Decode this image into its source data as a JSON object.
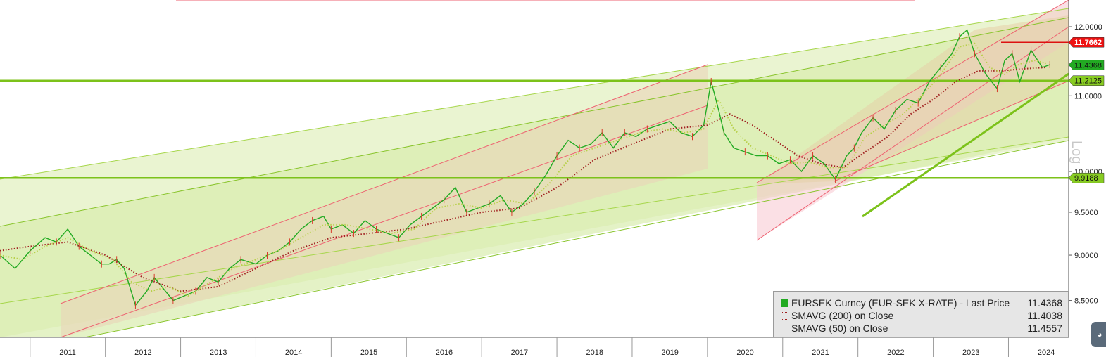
{
  "chart_data": {
    "type": "line",
    "title": "",
    "scale": "log",
    "ylim": [
      8.3,
      12.2
    ],
    "yticks": [
      "12.0000",
      "11.0000",
      "10.0000",
      "9.5000",
      "9.0000",
      "8.5000"
    ],
    "ytick_values": [
      12.0,
      11.0,
      10.0,
      9.5,
      9.0,
      8.5
    ],
    "x_year_labels": [
      "2011",
      "2012",
      "2013",
      "2014",
      "2015",
      "2016",
      "2017",
      "2018",
      "2019",
      "2020",
      "2021",
      "2022",
      "2023",
      "2024"
    ],
    "xlim": [
      2010.6,
      2024.8
    ],
    "axis_side_label": "Log",
    "series": [
      {
        "name": "EURSEK Curncy (EUR-SEK X-RATE) - Last Price",
        "color": "#22aa22",
        "x": [
          2010.6,
          2010.8,
          2011.0,
          2011.2,
          2011.35,
          2011.5,
          2011.65,
          2011.8,
          2011.95,
          2012.05,
          2012.15,
          2012.25,
          2012.4,
          2012.55,
          2012.65,
          2012.75,
          2012.9,
          2013.05,
          2013.2,
          2013.35,
          2013.5,
          2013.65,
          2013.8,
          2014.0,
          2014.15,
          2014.3,
          2014.45,
          2014.6,
          2014.75,
          2014.9,
          2015.0,
          2015.15,
          2015.3,
          2015.45,
          2015.6,
          2015.75,
          2015.9,
          2016.05,
          2016.2,
          2016.35,
          2016.5,
          2016.65,
          2016.8,
          2016.95,
          2017.1,
          2017.25,
          2017.4,
          2017.55,
          2017.7,
          2017.85,
          2018.0,
          2018.15,
          2018.3,
          2018.45,
          2018.6,
          2018.75,
          2018.9,
          2019.05,
          2019.2,
          2019.35,
          2019.5,
          2019.65,
          2019.8,
          2019.95,
          2020.05,
          2020.15,
          2020.22,
          2020.35,
          2020.5,
          2020.65,
          2020.8,
          2020.95,
          2021.1,
          2021.25,
          2021.4,
          2021.55,
          2021.7,
          2021.85,
          2021.95,
          2022.05,
          2022.2,
          2022.35,
          2022.5,
          2022.65,
          2022.8,
          2022.95,
          2023.1,
          2023.25,
          2023.35,
          2023.45,
          2023.55,
          2023.7,
          2023.85,
          2023.95,
          2024.05,
          2024.15,
          2024.3,
          2024.45,
          2024.55
        ],
        "y": [
          9.0,
          8.85,
          9.05,
          9.2,
          9.15,
          9.3,
          9.1,
          9.0,
          8.9,
          8.9,
          8.95,
          8.85,
          8.45,
          8.6,
          8.75,
          8.65,
          8.5,
          8.55,
          8.6,
          8.75,
          8.7,
          8.85,
          8.95,
          8.9,
          9.0,
          9.05,
          9.15,
          9.3,
          9.4,
          9.45,
          9.3,
          9.35,
          9.25,
          9.4,
          9.3,
          9.25,
          9.2,
          9.35,
          9.45,
          9.55,
          9.65,
          9.8,
          9.5,
          9.55,
          9.6,
          9.7,
          9.5,
          9.6,
          9.75,
          9.95,
          10.2,
          10.4,
          10.3,
          10.35,
          10.5,
          10.3,
          10.5,
          10.45,
          10.55,
          10.6,
          10.65,
          10.5,
          10.45,
          10.6,
          11.2,
          10.8,
          10.5,
          10.3,
          10.25,
          10.2,
          10.2,
          10.1,
          10.15,
          10.0,
          10.2,
          10.1,
          9.9,
          10.2,
          10.3,
          10.5,
          10.7,
          10.55,
          10.8,
          10.95,
          10.9,
          11.2,
          11.4,
          11.6,
          11.85,
          11.95,
          11.6,
          11.3,
          11.1,
          11.5,
          11.6,
          11.2,
          11.65,
          11.4,
          11.44
        ]
      },
      {
        "name": "SMAVG (200)  on Close",
        "color": "#a02020",
        "x": [
          2010.6,
          2011.0,
          2011.5,
          2012.0,
          2012.5,
          2013.0,
          2013.5,
          2014.0,
          2014.5,
          2015.0,
          2015.5,
          2016.0,
          2016.5,
          2017.0,
          2017.5,
          2018.0,
          2018.5,
          2019.0,
          2019.5,
          2020.0,
          2020.3,
          2020.6,
          2020.9,
          2021.2,
          2021.5,
          2021.8,
          2022.1,
          2022.4,
          2022.7,
          2023.0,
          2023.3,
          2023.6,
          2023.9,
          2024.2,
          2024.5
        ],
        "y": [
          9.05,
          9.1,
          9.15,
          9.0,
          8.75,
          8.6,
          8.65,
          8.85,
          9.05,
          9.2,
          9.25,
          9.3,
          9.4,
          9.5,
          9.55,
          9.8,
          10.15,
          10.35,
          10.55,
          10.6,
          10.75,
          10.6,
          10.4,
          10.2,
          10.1,
          10.05,
          10.25,
          10.45,
          10.75,
          10.95,
          11.2,
          11.35,
          11.35,
          11.38,
          11.4
        ]
      },
      {
        "name": "SMAVG (50)  on Close",
        "color": "#b8d04a",
        "x": [
          2010.6,
          2010.9,
          2011.2,
          2011.5,
          2011.8,
          2012.1,
          2012.35,
          2012.6,
          2012.85,
          2013.1,
          2013.4,
          2013.7,
          2014.0,
          2014.3,
          2014.6,
          2014.9,
          2015.2,
          2015.5,
          2015.8,
          2016.1,
          2016.4,
          2016.7,
          2017.0,
          2017.3,
          2017.6,
          2017.9,
          2018.2,
          2018.5,
          2018.8,
          2019.1,
          2019.4,
          2019.7,
          2019.95,
          2020.15,
          2020.35,
          2020.6,
          2020.85,
          2021.1,
          2021.35,
          2021.6,
          2021.85,
          2022.1,
          2022.35,
          2022.6,
          2022.85,
          2023.1,
          2023.35,
          2023.55,
          2023.75,
          2023.95,
          2024.15,
          2024.35,
          2024.5
        ],
        "y": [
          9.0,
          8.95,
          9.1,
          9.2,
          9.05,
          8.95,
          8.7,
          8.6,
          8.65,
          8.55,
          8.7,
          8.85,
          8.95,
          9.05,
          9.2,
          9.35,
          9.35,
          9.3,
          9.25,
          9.3,
          9.55,
          9.6,
          9.55,
          9.65,
          9.6,
          9.85,
          10.2,
          10.3,
          10.4,
          10.5,
          10.55,
          10.5,
          10.55,
          10.95,
          10.55,
          10.3,
          10.2,
          10.1,
          10.12,
          10.05,
          10.05,
          10.45,
          10.6,
          10.75,
          11.0,
          11.3,
          11.7,
          11.75,
          11.4,
          11.3,
          11.45,
          11.5,
          11.46
        ]
      }
    ],
    "price_tags": [
      {
        "label": "11.7662",
        "value": 11.7662,
        "bg": "#ee1111",
        "fg": "#ffffff"
      },
      {
        "label": "11.4368",
        "value": 11.4368,
        "bg": "#22aa22",
        "fg": "#111111"
      },
      {
        "label": "11.2125",
        "value": 11.2125,
        "bg": "#88cc22",
        "fg": "#111111"
      },
      {
        "label": "9.9188",
        "value": 9.9188,
        "bg": "#88cc22",
        "fg": "#111111"
      }
    ],
    "horizontal_lines": [
      {
        "value": 11.2125,
        "color": "#7cc21a"
      },
      {
        "value": 9.9188,
        "color": "#7cc21a"
      },
      {
        "value": 11.7662,
        "color": "#dd1111"
      }
    ],
    "legend": [
      {
        "symbol": "filled",
        "color": "#22aa22",
        "label": "EURSEK Curncy (EUR-SEK X-RATE) - Last Price",
        "value": "11.4368"
      },
      {
        "symbol": "dotted",
        "color": "#a02020",
        "label": "SMAVG (200)  on Close",
        "value": "11.4038"
      },
      {
        "symbol": "dotted",
        "color": "#b8d04a",
        "label": "SMAVG (50)  on Close",
        "value": "11.4557"
      }
    ],
    "legend_placement": "bottom-right"
  }
}
